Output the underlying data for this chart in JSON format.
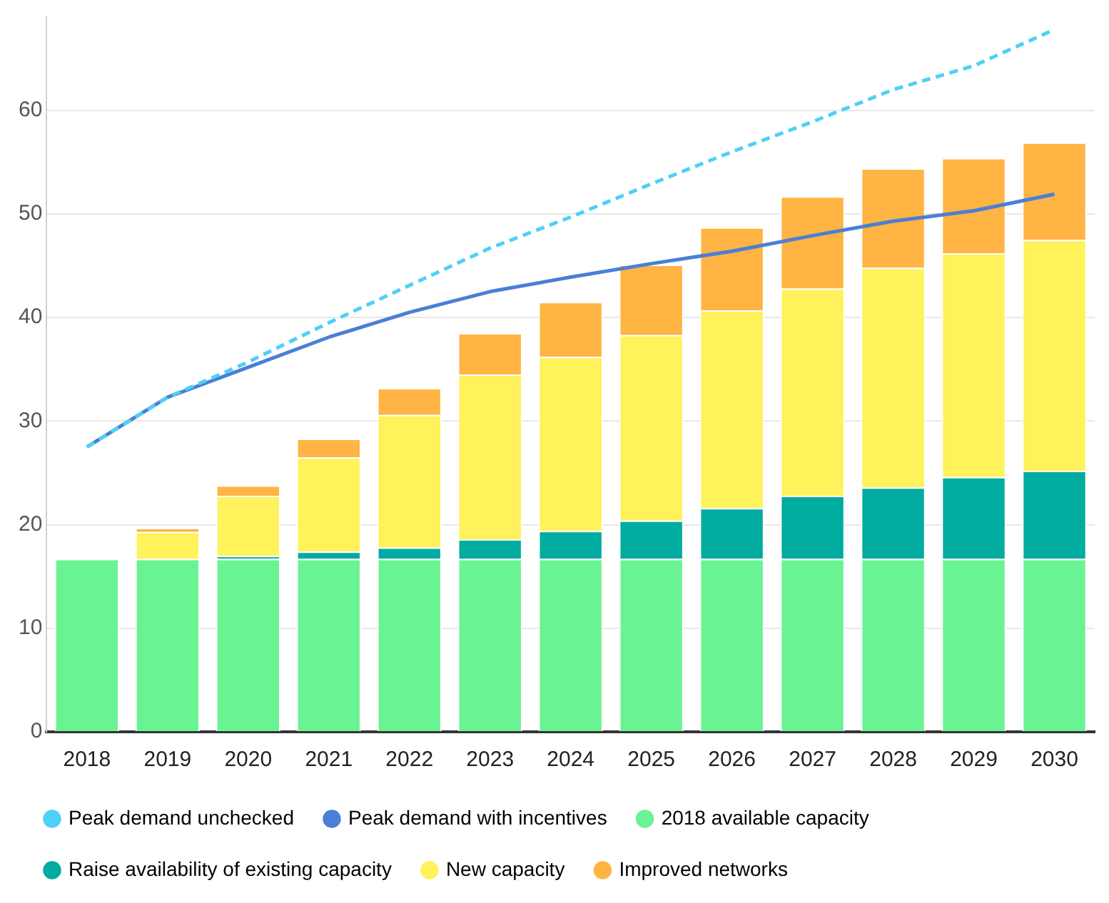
{
  "chart_data": {
    "type": "bar",
    "stacked": true,
    "categories": [
      "2018",
      "2019",
      "2020",
      "2021",
      "2022",
      "2023",
      "2024",
      "2025",
      "2026",
      "2027",
      "2028",
      "2029",
      "2030"
    ],
    "series": [
      {
        "name": "Peak demand unchecked",
        "type": "line",
        "line_style": "dashed",
        "color": "#4fd0f7",
        "values": [
          27.5,
          32.3,
          35.7,
          39.5,
          43.1,
          46.7,
          49.7,
          52.9,
          56.0,
          58.9,
          62.0,
          64.3,
          67.8
        ]
      },
      {
        "name": "Peak demand with incentives",
        "type": "line",
        "line_style": "solid",
        "color": "#4a7fd6",
        "values": [
          27.5,
          32.3,
          35.2,
          38.1,
          40.5,
          42.5,
          43.9,
          45.2,
          46.4,
          47.9,
          49.3,
          50.3,
          51.9
        ]
      },
      {
        "name": "2018 available capacity",
        "color": "#6af393",
        "values": [
          16.7,
          16.7,
          16.7,
          16.7,
          16.7,
          16.7,
          16.7,
          16.7,
          16.7,
          16.7,
          16.7,
          16.7,
          16.7
        ]
      },
      {
        "name": "Raise availability of existing capacity",
        "color": "#00ab9f",
        "values": [
          0,
          0,
          0.3,
          0.7,
          1.1,
          1.9,
          2.7,
          3.7,
          4.9,
          6.1,
          6.9,
          7.9,
          8.5
        ]
      },
      {
        "name": "New capacity",
        "color": "#fff25a",
        "values": [
          0,
          2.6,
          5.8,
          9.1,
          12.8,
          15.9,
          16.8,
          17.9,
          19.1,
          20.0,
          21.2,
          21.6,
          22.3
        ]
      },
      {
        "name": "Improved networks",
        "color": "#ffb443",
        "values": [
          0,
          0.4,
          1.0,
          1.8,
          2.6,
          4.0,
          5.3,
          6.8,
          8.0,
          8.9,
          9.6,
          9.2,
          9.4
        ]
      }
    ],
    "ylim": [
      0,
      69
    ],
    "yticks": [
      0,
      10,
      20,
      30,
      40,
      50,
      60
    ],
    "grid": "y",
    "legend": "bottom",
    "marker": "none"
  }
}
